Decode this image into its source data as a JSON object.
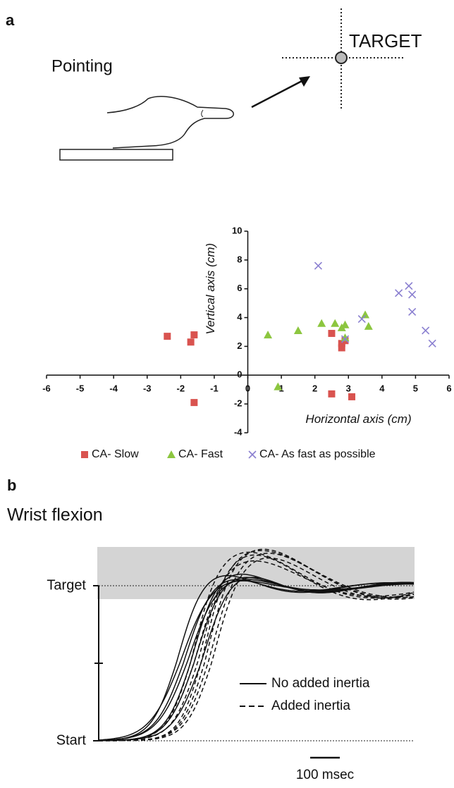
{
  "panel_a": {
    "label": "a",
    "pointing": "Pointing",
    "target": "TARGET"
  },
  "chart_data": {
    "type": "scatter",
    "x_label": "Horizontal axis  (cm)",
    "y_label": "Vertical axis (cm)",
    "xlim": [
      -6,
      6
    ],
    "ylim": [
      -4,
      10
    ],
    "xticks": [
      -6,
      -5,
      -4,
      -3,
      -2,
      -1,
      0,
      1,
      2,
      3,
      4,
      5,
      6
    ],
    "yticks": [
      -4,
      -2,
      0,
      2,
      4,
      6,
      8,
      10
    ],
    "series": [
      {
        "name": "CA- Slow",
        "color": "#d9534f",
        "marker": "square",
        "x": [
          -2.4,
          -1.7,
          -1.6,
          -1.6,
          2.5,
          2.8,
          2.8,
          2.9,
          2.5,
          3.1
        ],
        "values": [
          2.7,
          2.3,
          2.8,
          -1.9,
          2.9,
          2.2,
          1.9,
          2.4,
          -1.3,
          -1.5
        ]
      },
      {
        "name": "CA- Fast",
        "color": "#8cc63f",
        "marker": "triangle",
        "x": [
          0.6,
          0.9,
          1.5,
          2.2,
          2.6,
          2.8,
          2.9,
          3.5,
          3.6,
          2.9
        ],
        "values": [
          2.8,
          -0.8,
          3.1,
          3.6,
          3.6,
          3.3,
          3.5,
          4.2,
          3.4,
          2.6
        ]
      },
      {
        "name": "CA- As fast as possible",
        "color": "#8a7fd0",
        "marker": "cross",
        "x": [
          2.1,
          3.4,
          4.5,
          4.8,
          4.9,
          4.9,
          5.3,
          5.5,
          2.9
        ],
        "values": [
          7.6,
          3.9,
          5.7,
          6.2,
          5.6,
          4.4,
          3.1,
          2.2,
          2.5
        ]
      }
    ]
  },
  "panel_b": {
    "label": "b",
    "title": "Wrist flexion",
    "target": "Target",
    "start": "Start",
    "legend": [
      "No added inertia",
      "Added inertia"
    ],
    "scale_bar": "100 msec"
  }
}
